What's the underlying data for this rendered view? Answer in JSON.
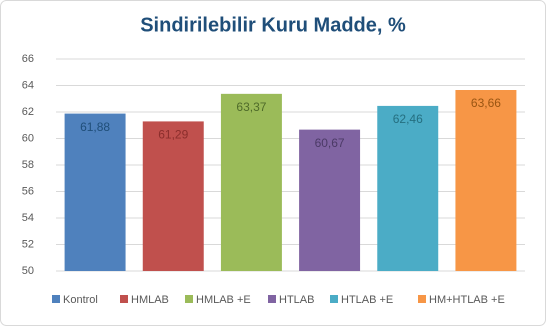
{
  "chart_data": {
    "type": "bar",
    "title": "Sindirilebilir Kuru Madde, %",
    "categories": [
      "Kontrol",
      "HMLAB",
      "HMLAB +E",
      "HTLAB",
      "HTLAB +E",
      "HM+HTLAB +E"
    ],
    "values": [
      61.88,
      61.29,
      63.37,
      60.67,
      62.46,
      63.66
    ],
    "value_labels": [
      "61,88",
      "61,29",
      "63,37",
      "60,67",
      "62,46",
      "63,66"
    ],
    "colors": [
      "#4f81bd",
      "#c0504d",
      "#9bbb59",
      "#8064a2",
      "#4bacc6",
      "#f79646"
    ],
    "ylim": [
      50,
      66
    ],
    "yticks": [
      50,
      52,
      54,
      56,
      58,
      60,
      62,
      64,
      66
    ],
    "grid": true,
    "legend": "bottom"
  }
}
